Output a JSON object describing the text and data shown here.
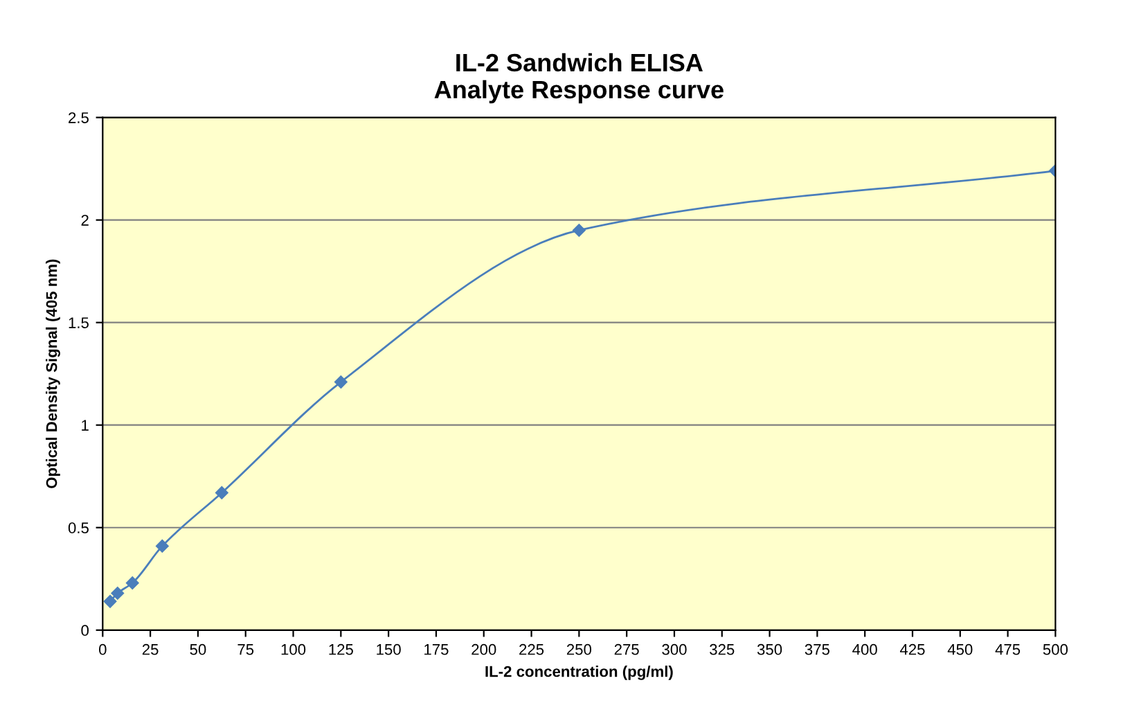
{
  "chart_data": {
    "type": "line",
    "title": "IL-2 Sandwich ELISA\nAnalyte Response curve",
    "xlabel": "IL-2 concentration (pg/ml)",
    "ylabel": "Optical Density Signal (405 nm)",
    "series": [
      {
        "color": "#4a7ebb",
        "x": [
          3.9,
          7.8,
          15.6,
          31.25,
          62.5,
          125,
          250,
          500
        ],
        "values": [
          0.14,
          0.18,
          0.23,
          0.41,
          0.67,
          1.21,
          1.95,
          2.24
        ]
      }
    ],
    "xlim": [
      0,
      500
    ],
    "xticks": [
      0,
      25,
      50,
      75,
      100,
      125,
      150,
      175,
      200,
      225,
      250,
      275,
      300,
      325,
      350,
      375,
      400,
      425,
      450,
      475,
      500
    ],
    "ylim": [
      0,
      2.5
    ],
    "yticks": [
      0,
      0.5,
      1,
      1.5,
      2,
      2.5
    ],
    "grid": "y",
    "marker": "diamond",
    "line_style": "solid"
  }
}
